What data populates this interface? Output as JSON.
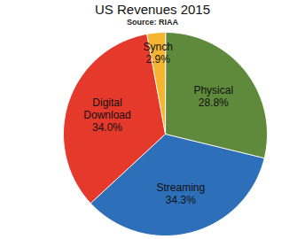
{
  "chart_data": {
    "type": "pie",
    "title": "US Revenues 2015",
    "subtitle": "Source: RIAA",
    "categories": [
      "Physical",
      "Streaming",
      "Digital Download",
      "Synch"
    ],
    "values": [
      28.8,
      34.3,
      34.0,
      2.9
    ],
    "value_labels": [
      "28.8%",
      "34.3%",
      "34.0%",
      "2.9%"
    ],
    "colors": [
      "#5f8a3b",
      "#2e6fb9",
      "#e5392b",
      "#f6b531"
    ],
    "data_labels": true
  }
}
